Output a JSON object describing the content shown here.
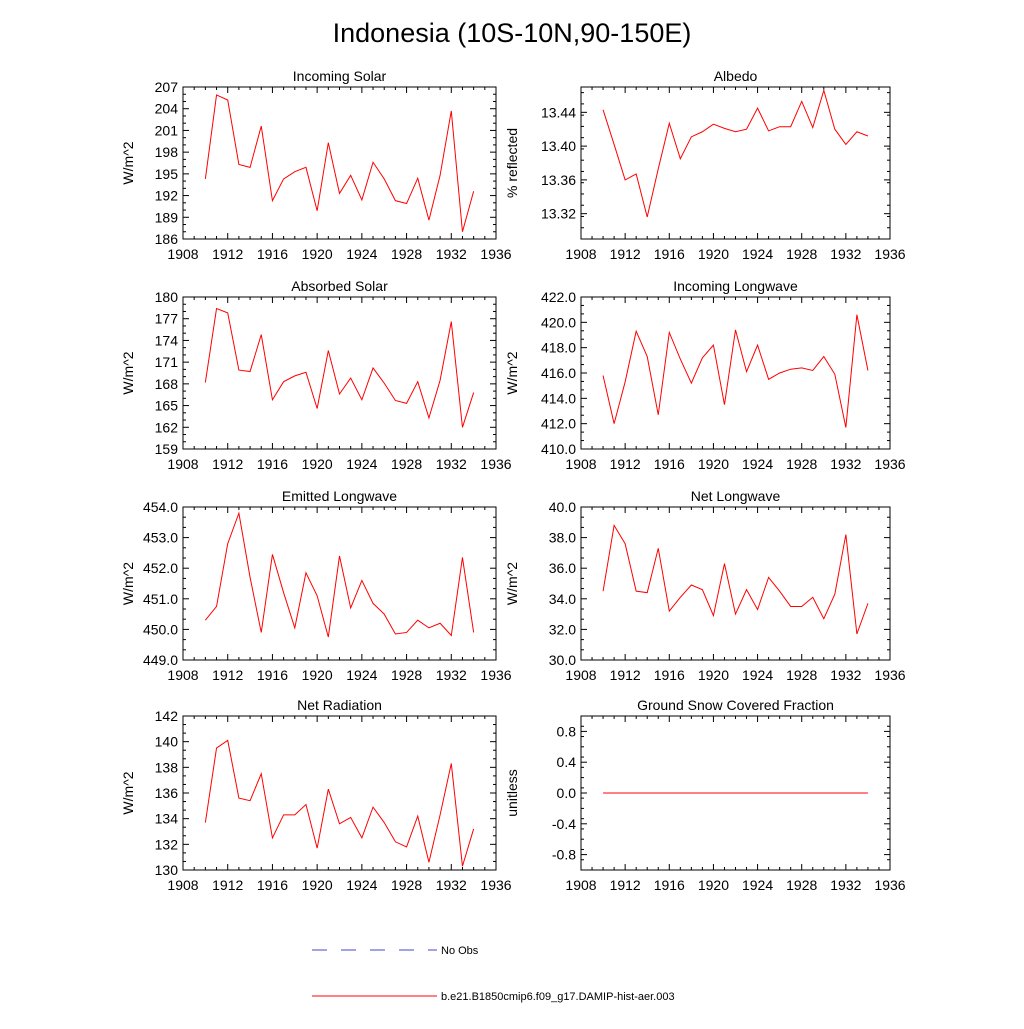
{
  "title": "Indonesia (10S-10N,90-150E)",
  "colors": {
    "series": "#ff0000",
    "obs": "#4444cc",
    "axis": "#000000"
  },
  "legend": {
    "obs_label": "No Obs",
    "model_label": "b.e21.B1850cmip6.f09_g17.DAMIP-hist-aer.003"
  },
  "chart_data": [
    {
      "type": "line",
      "title": "Incoming Solar",
      "ylabel": "W/m^2",
      "xlim": [
        1908,
        1936
      ],
      "ylim": [
        186,
        207
      ],
      "xticks": [
        1908,
        1912,
        1916,
        1920,
        1924,
        1928,
        1932,
        1936
      ],
      "xtick_labels": [
        "1908",
        "1912",
        "1916",
        "1920",
        "1924",
        "1928",
        "1932",
        "1936"
      ],
      "yticks": [
        186,
        189,
        192,
        195,
        198,
        201,
        204,
        207
      ],
      "ytick_labels": [
        "186",
        "189",
        "192",
        "195",
        "198",
        "201",
        "204",
        "207"
      ],
      "x": [
        1910,
        1911,
        1912,
        1913,
        1914,
        1915,
        1916,
        1917,
        1918,
        1919,
        1920,
        1921,
        1922,
        1923,
        1924,
        1925,
        1926,
        1927,
        1928,
        1929,
        1930,
        1931,
        1932,
        1933,
        1934
      ],
      "y": [
        194.3,
        205.9,
        205.2,
        196.3,
        195.9,
        201.6,
        191.3,
        194.3,
        195.3,
        195.9,
        189.9,
        199.3,
        192.3,
        194.8,
        191.4,
        196.6,
        194.3,
        191.3,
        190.9,
        194.4,
        188.6,
        194.8,
        203.7,
        187.0,
        192.6
      ]
    },
    {
      "type": "line",
      "title": "Albedo",
      "ylabel": "% reflected",
      "xlim": [
        1908,
        1936
      ],
      "ylim": [
        13.29,
        13.47
      ],
      "xticks": [
        1908,
        1912,
        1916,
        1920,
        1924,
        1928,
        1932,
        1936
      ],
      "xtick_labels": [
        "1908",
        "1912",
        "1916",
        "1920",
        "1924",
        "1928",
        "1932",
        "1936"
      ],
      "yticks": [
        13.32,
        13.36,
        13.4,
        13.44
      ],
      "ytick_labels": [
        "13.32",
        "13.36",
        "13.40",
        "13.44"
      ],
      "x": [
        1910,
        1911,
        1912,
        1913,
        1914,
        1915,
        1916,
        1917,
        1918,
        1919,
        1920,
        1921,
        1922,
        1923,
        1924,
        1925,
        1926,
        1927,
        1928,
        1929,
        1930,
        1931,
        1932,
        1933,
        1934
      ],
      "y": [
        13.443,
        13.402,
        13.36,
        13.367,
        13.316,
        13.373,
        13.427,
        13.385,
        13.411,
        13.417,
        13.426,
        13.421,
        13.417,
        13.42,
        13.445,
        13.418,
        13.423,
        13.423,
        13.453,
        13.422,
        13.466,
        13.42,
        13.402,
        13.417,
        13.412
      ]
    },
    {
      "type": "line",
      "title": "Absorbed Solar",
      "ylabel": "W/m^2",
      "xlim": [
        1908,
        1936
      ],
      "ylim": [
        159,
        180
      ],
      "xticks": [
        1908,
        1912,
        1916,
        1920,
        1924,
        1928,
        1932,
        1936
      ],
      "xtick_labels": [
        "1908",
        "1912",
        "1916",
        "1920",
        "1924",
        "1928",
        "1932",
        "1936"
      ],
      "yticks": [
        159,
        162,
        165,
        168,
        171,
        174,
        177,
        180
      ],
      "ytick_labels": [
        "159",
        "162",
        "165",
        "168",
        "171",
        "174",
        "177",
        "180"
      ],
      "x": [
        1910,
        1911,
        1912,
        1913,
        1914,
        1915,
        1916,
        1917,
        1918,
        1919,
        1920,
        1921,
        1922,
        1923,
        1924,
        1925,
        1926,
        1927,
        1928,
        1929,
        1930,
        1931,
        1932,
        1933,
        1934
      ],
      "y": [
        168.2,
        178.4,
        177.8,
        169.9,
        169.7,
        174.8,
        165.8,
        168.3,
        169.1,
        169.6,
        164.6,
        172.6,
        166.6,
        168.8,
        165.8,
        170.2,
        168.1,
        165.7,
        165.3,
        168.3,
        163.3,
        168.5,
        176.6,
        162.0,
        166.8
      ]
    },
    {
      "type": "line",
      "title": "Incoming Longwave",
      "ylabel": "W/m^2",
      "xlim": [
        1908,
        1936
      ],
      "ylim": [
        410.0,
        422.0
      ],
      "xticks": [
        1908,
        1912,
        1916,
        1920,
        1924,
        1928,
        1932,
        1936
      ],
      "xtick_labels": [
        "1908",
        "1912",
        "1916",
        "1920",
        "1924",
        "1928",
        "1932",
        "1936"
      ],
      "yticks": [
        410,
        412,
        414,
        416,
        418,
        420,
        422
      ],
      "ytick_labels": [
        "410.0",
        "412.0",
        "414.0",
        "416.0",
        "418.0",
        "420.0",
        "422.0"
      ],
      "x": [
        1910,
        1911,
        1912,
        1913,
        1914,
        1915,
        1916,
        1917,
        1918,
        1919,
        1920,
        1921,
        1922,
        1923,
        1924,
        1925,
        1926,
        1927,
        1928,
        1929,
        1930,
        1931,
        1932,
        1933,
        1934
      ],
      "y": [
        415.8,
        412.0,
        415.3,
        419.3,
        417.3,
        412.7,
        419.2,
        417.1,
        415.2,
        417.2,
        418.2,
        413.5,
        419.4,
        416.1,
        418.2,
        415.5,
        416.0,
        416.3,
        416.4,
        416.2,
        417.3,
        415.9,
        411.7,
        420.6,
        416.2
      ]
    },
    {
      "type": "line",
      "title": "Emitted Longwave",
      "ylabel": "W/m^2",
      "xlim": [
        1908,
        1936
      ],
      "ylim": [
        449.0,
        454.0
      ],
      "xticks": [
        1908,
        1912,
        1916,
        1920,
        1924,
        1928,
        1932,
        1936
      ],
      "xtick_labels": [
        "1908",
        "1912",
        "1916",
        "1920",
        "1924",
        "1928",
        "1932",
        "1936"
      ],
      "yticks": [
        449,
        450,
        451,
        452,
        453,
        454
      ],
      "ytick_labels": [
        "449.0",
        "450.0",
        "451.0",
        "452.0",
        "453.0",
        "454.0"
      ],
      "x": [
        1910,
        1911,
        1912,
        1913,
        1914,
        1915,
        1916,
        1917,
        1918,
        1919,
        1920,
        1921,
        1922,
        1923,
        1924,
        1925,
        1926,
        1927,
        1928,
        1929,
        1930,
        1931,
        1932,
        1933,
        1934
      ],
      "y": [
        450.3,
        450.75,
        452.8,
        453.8,
        451.7,
        449.9,
        452.45,
        451.2,
        450.05,
        451.85,
        451.1,
        449.75,
        452.4,
        450.7,
        451.6,
        450.85,
        450.5,
        449.85,
        449.9,
        450.3,
        450.05,
        450.2,
        449.8,
        452.35,
        449.9
      ]
    },
    {
      "type": "line",
      "title": "Net Longwave",
      "ylabel": "W/m^2",
      "xlim": [
        1908,
        1936
      ],
      "ylim": [
        30.0,
        40.0
      ],
      "xticks": [
        1908,
        1912,
        1916,
        1920,
        1924,
        1928,
        1932,
        1936
      ],
      "xtick_labels": [
        "1908",
        "1912",
        "1916",
        "1920",
        "1924",
        "1928",
        "1932",
        "1936"
      ],
      "yticks": [
        30,
        32,
        34,
        36,
        38,
        40
      ],
      "ytick_labels": [
        "30.0",
        "32.0",
        "34.0",
        "36.0",
        "38.0",
        "40.0"
      ],
      "x": [
        1910,
        1911,
        1912,
        1913,
        1914,
        1915,
        1916,
        1917,
        1918,
        1919,
        1920,
        1921,
        1922,
        1923,
        1924,
        1925,
        1926,
        1927,
        1928,
        1929,
        1930,
        1931,
        1932,
        1933,
        1934
      ],
      "y": [
        34.5,
        38.8,
        37.6,
        34.5,
        34.4,
        37.3,
        33.2,
        34.1,
        34.9,
        34.6,
        32.9,
        36.3,
        33.0,
        34.6,
        33.3,
        35.4,
        34.5,
        33.5,
        33.5,
        34.1,
        32.7,
        34.3,
        38.2,
        31.7,
        33.7
      ]
    },
    {
      "type": "line",
      "title": "Net Radiation",
      "ylabel": "W/m^2",
      "xlim": [
        1908,
        1936
      ],
      "ylim": [
        130,
        142
      ],
      "xticks": [
        1908,
        1912,
        1916,
        1920,
        1924,
        1928,
        1932,
        1936
      ],
      "xtick_labels": [
        "1908",
        "1912",
        "1916",
        "1920",
        "1924",
        "1928",
        "1932",
        "1936"
      ],
      "yticks": [
        130,
        132,
        134,
        136,
        138,
        140,
        142
      ],
      "ytick_labels": [
        "130",
        "132",
        "134",
        "136",
        "138",
        "140",
        "142"
      ],
      "x": [
        1910,
        1911,
        1912,
        1913,
        1914,
        1915,
        1916,
        1917,
        1918,
        1919,
        1920,
        1921,
        1922,
        1923,
        1924,
        1925,
        1926,
        1927,
        1928,
        1929,
        1930,
        1931,
        1932,
        1933,
        1934
      ],
      "y": [
        133.7,
        139.5,
        140.1,
        135.6,
        135.4,
        137.5,
        132.5,
        134.3,
        134.3,
        135.1,
        131.7,
        136.3,
        133.6,
        134.1,
        132.5,
        134.9,
        133.7,
        132.2,
        131.8,
        134.2,
        130.6,
        134.3,
        138.3,
        130.3,
        133.2
      ]
    },
    {
      "type": "line",
      "title": "Ground Snow Covered Fraction",
      "ylabel": "unitless",
      "xlim": [
        1908,
        1936
      ],
      "ylim": [
        -1.0,
        1.0
      ],
      "xticks": [
        1908,
        1912,
        1916,
        1920,
        1924,
        1928,
        1932,
        1936
      ],
      "xtick_labels": [
        "1908",
        "1912",
        "1916",
        "1920",
        "1924",
        "1928",
        "1932",
        "1936"
      ],
      "yticks": [
        -0.8,
        -0.4,
        0.0,
        0.4,
        0.8
      ],
      "ytick_labels": [
        "-0.8",
        "-0.4",
        "0.0",
        "0.4",
        "0.8"
      ],
      "x": [
        1910,
        1934
      ],
      "y": [
        0.0,
        0.0
      ]
    }
  ]
}
